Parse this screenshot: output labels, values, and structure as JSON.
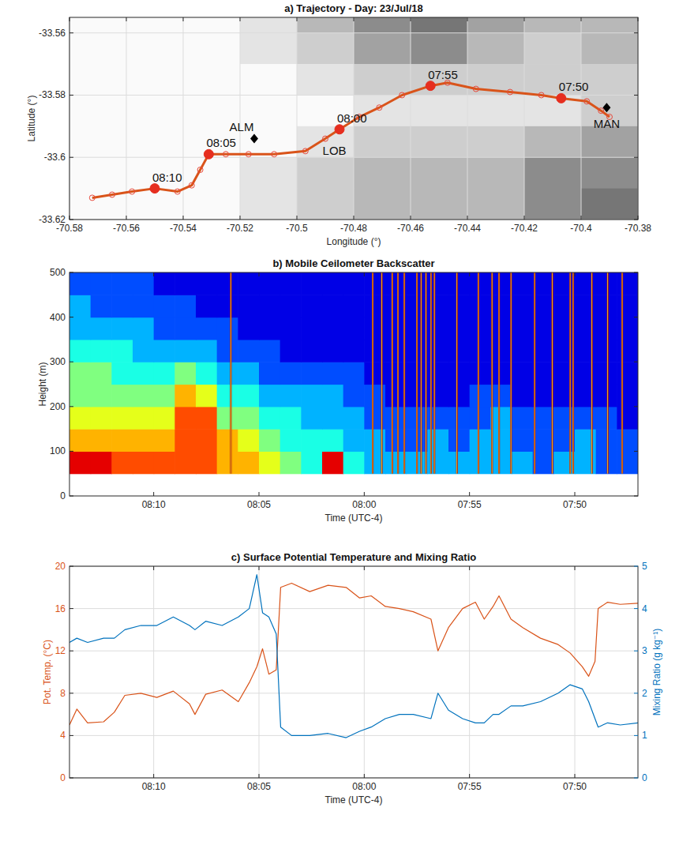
{
  "chart_data": [
    {
      "type": "line",
      "title": "a) Trajectory - Day: 23/Jul/18",
      "xlabel": "Longitude (°)",
      "ylabel": "Latitude (°)",
      "xlim": [
        -70.58,
        -70.38
      ],
      "ylim": [
        -33.62,
        -33.555
      ],
      "xticks": [
        -70.58,
        -70.56,
        -70.54,
        -70.52,
        -70.5,
        -70.48,
        -70.46,
        -70.44,
        -70.42,
        -70.4,
        -70.38
      ],
      "yticks": [
        -33.62,
        -33.6,
        -33.58,
        -33.56
      ],
      "grid": true,
      "terrain": {
        "x": [
          -70.57,
          -70.55,
          -70.53,
          -70.51,
          -70.49,
          -70.47,
          -70.45,
          -70.43,
          -70.41,
          -70.39
        ],
        "y": [
          -33.555,
          -33.565,
          -33.575,
          -33.585,
          -33.595,
          -33.605,
          -33.615
        ],
        "values": [
          [
            0,
            0,
            0,
            1,
            3,
            5,
            6,
            4,
            3,
            3
          ],
          [
            0,
            0,
            0,
            1,
            2,
            4,
            5,
            3,
            2,
            3
          ],
          [
            0,
            0,
            0,
            0,
            1,
            2,
            2,
            2,
            2,
            2
          ],
          [
            0,
            0,
            0,
            0,
            0,
            1,
            1,
            1,
            1,
            2
          ],
          [
            0,
            0,
            0,
            0,
            1,
            2,
            2,
            2,
            3,
            4
          ],
          [
            0,
            0,
            0,
            1,
            2,
            3,
            3,
            3,
            5,
            5
          ],
          [
            0,
            0,
            0,
            1,
            2,
            3,
            3,
            3,
            5,
            6
          ]
        ]
      },
      "series": [
        {
          "color": "#d9541a",
          "marker": "circle",
          "line_style": "solid",
          "x": [
            -70.572,
            -70.565,
            -70.558,
            -70.55,
            -70.542,
            -70.537,
            -70.534,
            -70.531,
            -70.525,
            -70.517,
            -70.508,
            -70.497,
            -70.49,
            -70.485,
            -70.478,
            -70.471,
            -70.463,
            -70.453,
            -70.447,
            -70.437,
            -70.425,
            -70.414,
            -70.407,
            -70.398,
            -70.393,
            -70.39
          ],
          "values": [
            -33.613,
            -33.612,
            -33.611,
            -33.61,
            -33.611,
            -33.609,
            -33.604,
            -33.599,
            -33.599,
            -33.599,
            -33.599,
            -33.598,
            -33.594,
            -33.591,
            -33.587,
            -33.584,
            -33.58,
            -33.577,
            -33.576,
            -33.578,
            -33.579,
            -33.58,
            -33.581,
            -33.582,
            -33.585,
            -33.587
          ]
        }
      ],
      "annotations": [
        {
          "label": "08:10",
          "x": -70.55,
          "y": -33.61
        },
        {
          "label": "08:05",
          "x": -70.531,
          "y": -33.599
        },
        {
          "label": "08:00",
          "x": -70.485,
          "y": -33.591
        },
        {
          "label": "07:55",
          "x": -70.453,
          "y": -33.577
        },
        {
          "label": "07:50",
          "x": -70.407,
          "y": -33.581
        }
      ],
      "stations": [
        {
          "label": "ALM",
          "x": -70.515,
          "y": -33.594,
          "marker": "diamond"
        },
        {
          "label": "LOB",
          "x": -70.489,
          "y": -33.593,
          "marker": "none"
        },
        {
          "label": "MAN",
          "x": -70.391,
          "y": -33.584,
          "marker": "diamond"
        }
      ]
    },
    {
      "type": "heatmap",
      "title": "b) Mobile Ceilometer Backscatter",
      "xlabel": "Time (UTC-4)",
      "ylabel": "Height (m)",
      "xlim": [
        494,
        467
      ],
      "ylim": [
        0,
        500
      ],
      "xticks": [
        {
          "value": 490,
          "label": "08:10"
        },
        {
          "value": 485,
          "label": "08:05"
        },
        {
          "value": 480,
          "label": "08:00"
        },
        {
          "value": 475,
          "label": "07:55"
        },
        {
          "value": 470,
          "label": "07:50"
        }
      ],
      "yticks": [
        0,
        100,
        200,
        300,
        400,
        500
      ],
      "grid": false,
      "x_edges": [
        494,
        493,
        492,
        491,
        490,
        489,
        488,
        487,
        486,
        485,
        484,
        483,
        482,
        481,
        480,
        479,
        478,
        477,
        476,
        475,
        474,
        473,
        472,
        471,
        470,
        469,
        468,
        467
      ],
      "y_edges": [
        50,
        100,
        150,
        200,
        250,
        300,
        350,
        400,
        450,
        500
      ],
      "zlim": [
        0,
        10
      ],
      "cells": [
        [
          9,
          9,
          8,
          8,
          8,
          8,
          8,
          7,
          7,
          6,
          5,
          4,
          9,
          4,
          3,
          3,
          3,
          3,
          3,
          3,
          3,
          3,
          2,
          3,
          3,
          2,
          2
        ],
        [
          7,
          7,
          7,
          7,
          7,
          8,
          8,
          7,
          6,
          5,
          4,
          4,
          4,
          3,
          3,
          2,
          2,
          3,
          2,
          3,
          3,
          2,
          2,
          2,
          3,
          2,
          2
        ],
        [
          6,
          6,
          6,
          6,
          6,
          8,
          8,
          5,
          5,
          4,
          4,
          3,
          3,
          3,
          2,
          2,
          2,
          2,
          2,
          2,
          3,
          2,
          2,
          2,
          2,
          2,
          1
        ],
        [
          5,
          5,
          5,
          5,
          5,
          7,
          6,
          4,
          4,
          3,
          3,
          3,
          3,
          2,
          2,
          1,
          1,
          1,
          1,
          2,
          2,
          1,
          1,
          1,
          1,
          1,
          1
        ],
        [
          5,
          5,
          4,
          4,
          4,
          5,
          4,
          3,
          3,
          2,
          2,
          2,
          2,
          2,
          1,
          1,
          1,
          1,
          1,
          1,
          1,
          1,
          1,
          1,
          1,
          1,
          1
        ],
        [
          4,
          4,
          4,
          3,
          3,
          3,
          3,
          2,
          2,
          2,
          1,
          1,
          1,
          1,
          1,
          1,
          1,
          1,
          1,
          1,
          1,
          1,
          1,
          1,
          1,
          1,
          1
        ],
        [
          3,
          3,
          3,
          3,
          2,
          2,
          2,
          2,
          1,
          1,
          1,
          1,
          1,
          1,
          1,
          1,
          1,
          1,
          1,
          1,
          1,
          1,
          1,
          1,
          1,
          1,
          1
        ],
        [
          3,
          2,
          2,
          2,
          2,
          2,
          1,
          1,
          1,
          1,
          1,
          1,
          1,
          1,
          1,
          1,
          1,
          1,
          1,
          1,
          1,
          1,
          1,
          1,
          1,
          1,
          1
        ],
        [
          2,
          2,
          2,
          2,
          1,
          1,
          1,
          1,
          1,
          1,
          1,
          1,
          1,
          1,
          1,
          1,
          1,
          1,
          1,
          1,
          1,
          1,
          1,
          1,
          1,
          1,
          1
        ]
      ],
      "stripes": [
        486.34,
        479.6,
        479.17,
        478.67,
        478.4,
        478.1,
        477.5,
        477.3,
        477.07,
        476.83,
        476.67,
        475.6,
        474.58,
        473.93,
        473.6,
        473.03,
        471.91,
        471.07,
        470.22,
        470.08,
        469.19,
        468.44,
        467.75
      ]
    },
    {
      "type": "line",
      "title": "c) Surface Potential Temperature and Mixing Ratio",
      "xlabel": "Time (UTC-4)",
      "ylabel": "Pot. Temp. (°C)",
      "y2label": "Mixing Ratio (g kg⁻¹)",
      "xlim": [
        494,
        467
      ],
      "ylim": [
        0,
        20
      ],
      "y2lim": [
        0,
        5
      ],
      "xticks": [
        {
          "value": 490,
          "label": "08:10"
        },
        {
          "value": 485,
          "label": "08:05"
        },
        {
          "value": 480,
          "label": "08:00"
        },
        {
          "value": 475,
          "label": "07:55"
        },
        {
          "value": 470,
          "label": "07:50"
        }
      ],
      "yticks": [
        0,
        4,
        8,
        12,
        16,
        20
      ],
      "y2ticks": [
        0,
        1,
        2,
        3,
        4,
        5
      ],
      "grid": true,
      "x": [
        494.0,
        493.65,
        493.14,
        492.38,
        491.87,
        491.37,
        490.61,
        489.85,
        489.07,
        488.3,
        488.04,
        487.53,
        486.75,
        485.98,
        485.46,
        485.1,
        484.83,
        484.53,
        484.18,
        483.97,
        483.45,
        482.59,
        481.72,
        480.86,
        480.22,
        479.67,
        479.0,
        478.33,
        477.67,
        476.83,
        476.5,
        476.0,
        475.33,
        474.72,
        474.3,
        473.88,
        473.6,
        473.03,
        472.47,
        471.63,
        470.79,
        470.22,
        469.64,
        469.34,
        469.04,
        468.89,
        468.44,
        467.84,
        467.0
      ],
      "series": [
        {
          "color": "#d95319",
          "line_style": "solid",
          "values": [
            5.0,
            6.5,
            5.2,
            5.3,
            6.2,
            7.8,
            8.0,
            7.6,
            8.2,
            7.0,
            6.0,
            7.9,
            8.3,
            7.2,
            9.0,
            10.5,
            12.2,
            9.8,
            10.2,
            18.0,
            18.4,
            17.6,
            18.2,
            18.0,
            17.0,
            17.2,
            16.2,
            16.0,
            15.7,
            15.0,
            12.0,
            14.2,
            16.0,
            16.6,
            15.0,
            16.2,
            17.2,
            15.0,
            14.2,
            13.2,
            12.6,
            11.8,
            10.5,
            9.6,
            11.0,
            16.0,
            16.6,
            16.4,
            16.5
          ]
        },
        {
          "color": "#0072bd",
          "line_style": "solid",
          "axis": "y2",
          "values": [
            3.2,
            3.3,
            3.2,
            3.3,
            3.3,
            3.5,
            3.6,
            3.6,
            3.8,
            3.6,
            3.5,
            3.7,
            3.6,
            3.8,
            4.0,
            4.8,
            3.9,
            3.8,
            3.4,
            1.2,
            1.0,
            1.0,
            1.05,
            0.95,
            1.1,
            1.2,
            1.4,
            1.5,
            1.5,
            1.4,
            2.0,
            1.6,
            1.4,
            1.3,
            1.3,
            1.5,
            1.5,
            1.7,
            1.7,
            1.8,
            2.0,
            2.2,
            2.1,
            1.8,
            1.4,
            1.2,
            1.3,
            1.25,
            1.3
          ]
        }
      ]
    }
  ]
}
